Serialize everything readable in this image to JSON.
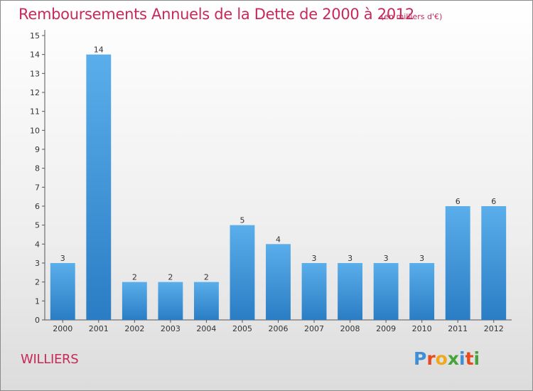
{
  "header": {
    "title": "Remboursements Annuels de la Dette de 2000 à 2012",
    "unit": "(en milliers d'€)"
  },
  "footer": {
    "commune": "WILLIERS",
    "logo_text": "Proxiti",
    "logo_colors": [
      "#3e8fd6",
      "#e8491d",
      "#f2a81d",
      "#46a33a",
      "#3e8fd6",
      "#e8491d",
      "#46a33a"
    ]
  },
  "colors": {
    "accent": "#c8285a",
    "bar_top": "#5aaeea",
    "bar_bottom": "#2a7dc4",
    "axis": "#333333"
  },
  "chart_data": {
    "type": "bar",
    "title": "Remboursements Annuels de la Dette de 2000 à 2012",
    "subtitle": "(en milliers d'€)",
    "xlabel": "",
    "ylabel": "",
    "categories": [
      "2000",
      "2001",
      "2002",
      "2003",
      "2004",
      "2005",
      "2006",
      "2007",
      "2008",
      "2009",
      "2010",
      "2011",
      "2012"
    ],
    "values": [
      3,
      14,
      2,
      2,
      2,
      5,
      4,
      3,
      3,
      3,
      3,
      6,
      6
    ],
    "ylim": [
      0,
      15
    ],
    "yticks": [
      0,
      1,
      2,
      3,
      4,
      5,
      6,
      7,
      8,
      9,
      10,
      11,
      12,
      13,
      14,
      15
    ],
    "grid": false,
    "legend": "none"
  }
}
